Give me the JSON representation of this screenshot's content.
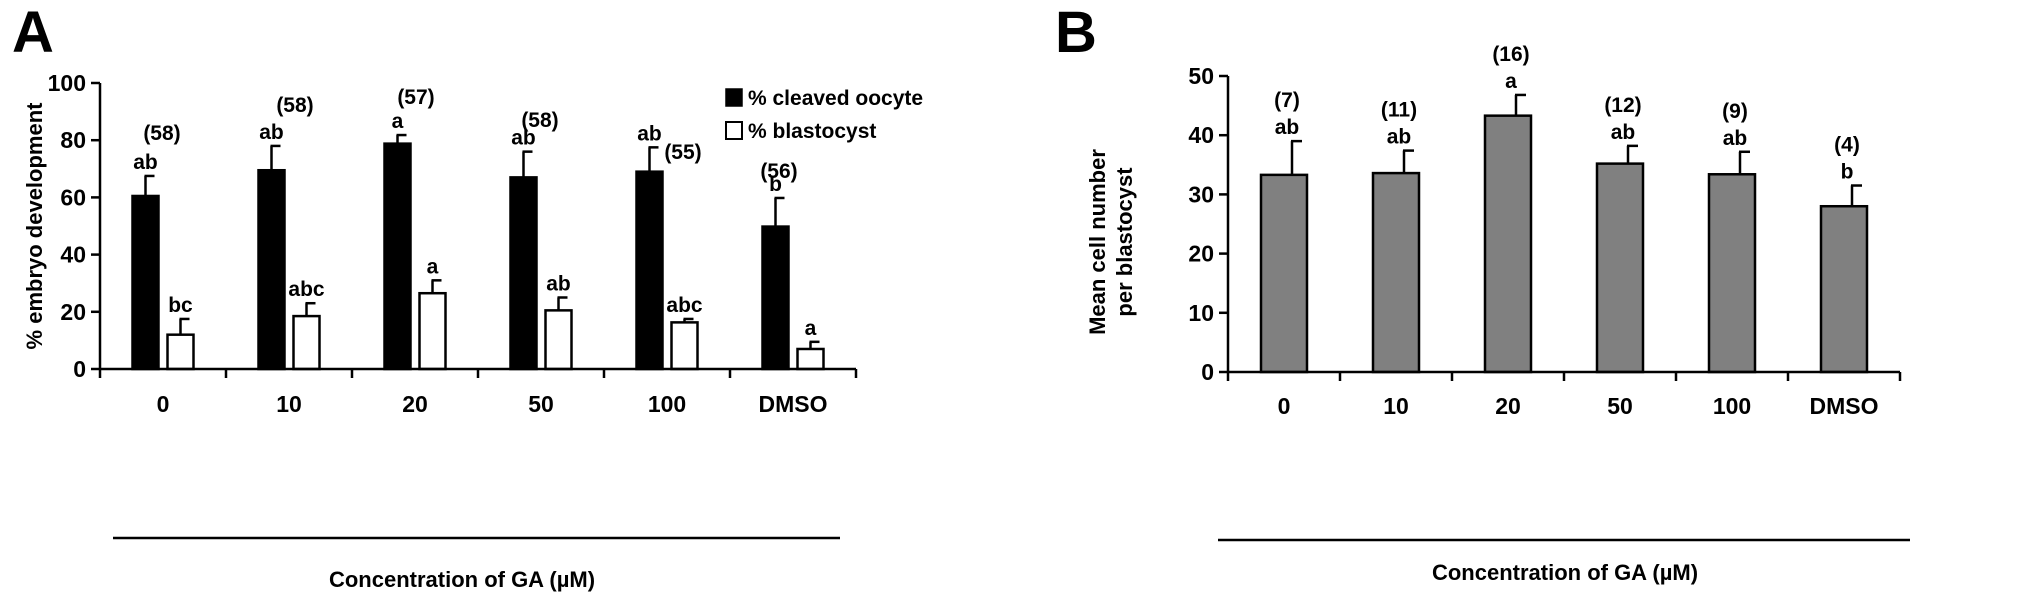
{
  "chart_data": [
    {
      "panel": "A",
      "type": "bar",
      "title": "",
      "xlabel": "Concentration of GA (µM)",
      "ylabel": "% embryo development",
      "ylim": [
        0,
        100
      ],
      "yticks": [
        "0",
        "20",
        "40",
        "60",
        "80",
        "100"
      ],
      "categories": [
        "0",
        "10",
        "20",
        "50",
        "100",
        "DMSO"
      ],
      "legend_position": "top-right",
      "series": [
        {
          "name": "% cleaved oocyte",
          "color": "#000000",
          "values": [
            60.5,
            69.5,
            78.8,
            67.0,
            69.0,
            49.8
          ],
          "errors": [
            7.0,
            8.5,
            3.0,
            9.0,
            8.5,
            10.0
          ],
          "letters": [
            "ab",
            "ab",
            "a",
            "ab",
            "ab",
            "b"
          ]
        },
        {
          "name": "% blastocyst",
          "color": "#ffffff",
          "values": [
            12.0,
            18.5,
            26.5,
            20.5,
            16.3,
            7.0
          ],
          "errors": [
            5.5,
            4.5,
            4.5,
            4.5,
            1.2,
            2.5
          ],
          "letters": [
            "bc",
            "abc",
            "a",
            "ab",
            "abc",
            "a"
          ]
        }
      ],
      "counts": [
        "(58)",
        "(58)",
        "(57)",
        "(58)",
        "(55)",
        "(56)"
      ]
    },
    {
      "panel": "B",
      "type": "bar",
      "title": "",
      "xlabel": "Concentration of GA (µM)",
      "ylabel_line1": "Mean cell number",
      "ylabel_line2": "per blastocyst",
      "ylim": [
        0,
        50
      ],
      "yticks": [
        "0",
        "10",
        "20",
        "30",
        "40",
        "50"
      ],
      "categories": [
        "0",
        "10",
        "20",
        "50",
        "100",
        "DMSO"
      ],
      "series": [
        {
          "color": "#808080",
          "values": [
            33.3,
            33.6,
            43.3,
            35.2,
            33.4,
            28.0
          ],
          "errors": [
            5.7,
            3.8,
            3.5,
            3.0,
            3.8,
            3.5
          ],
          "letters": [
            "ab",
            "ab",
            "a",
            "ab",
            "ab",
            "b"
          ]
        }
      ],
      "counts": [
        "(7)",
        "(11)",
        "(16)",
        "(12)",
        "(9)",
        "(4)"
      ]
    }
  ]
}
